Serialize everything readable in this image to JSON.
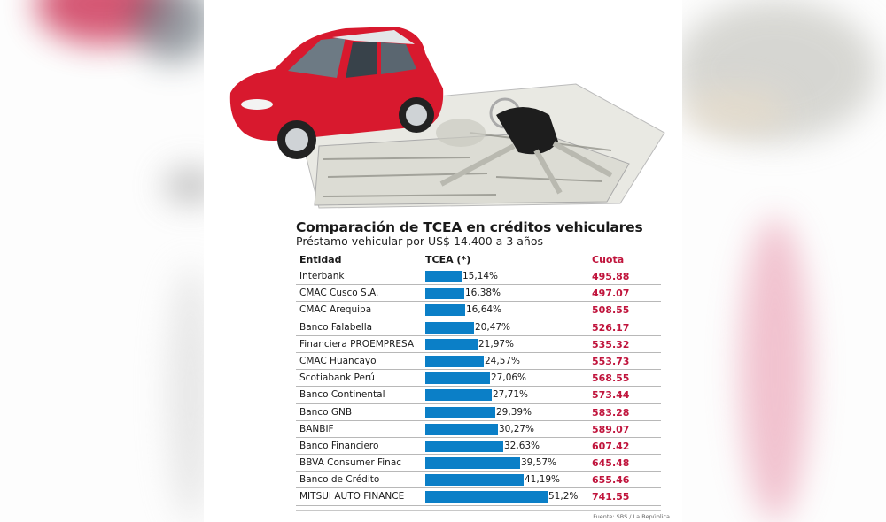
{
  "infographic": {
    "title": "Comparación de TCEA en créditos vehiculares",
    "subtitle": "Préstamo vehicular por US$ 14.400 a 3 años",
    "source": "Fuente: SBS / La República",
    "hero_image": "red-toy-car-on-dollar-bills-with-keys",
    "colors": {
      "bar": "#0b7fc7",
      "cuota": "#c0143c",
      "text": "#1a1a1a"
    },
    "table": {
      "headers": {
        "entidad": "Entidad",
        "tcea": "TCEA (*)",
        "cuota": "Cuota"
      },
      "rows": [
        {
          "entidad": "Interbank",
          "tcea": "15,14%",
          "cuota": "495.88"
        },
        {
          "entidad": "CMAC Cusco S.A.",
          "tcea": "16,38%",
          "cuota": "497.07"
        },
        {
          "entidad": "CMAC Arequipa",
          "tcea": "16,64%",
          "cuota": "508.55"
        },
        {
          "entidad": "Banco Falabella",
          "tcea": "20,47%",
          "cuota": "526.17"
        },
        {
          "entidad": "Financiera PROEMPRESA",
          "tcea": "21,97%",
          "cuota": "535.32"
        },
        {
          "entidad": "CMAC Huancayo",
          "tcea": "24,57%",
          "cuota": "553.73"
        },
        {
          "entidad": "Scotiabank Perú",
          "tcea": "27,06%",
          "cuota": "568.55"
        },
        {
          "entidad": "Banco Continental",
          "tcea": "27,71%",
          "cuota": "573.44"
        },
        {
          "entidad": "Banco GNB",
          "tcea": "29,39%",
          "cuota": "583.28"
        },
        {
          "entidad": "BANBIF",
          "tcea": "30,27%",
          "cuota": "589.07"
        },
        {
          "entidad": "Banco Financiero",
          "tcea": "32,63%",
          "cuota": "607.42"
        },
        {
          "entidad": "BBVA Consumer Finac",
          "tcea": "39,57%",
          "cuota": "645.48"
        },
        {
          "entidad": "Banco de Crédito",
          "tcea": "41,19%",
          "cuota": "655.46"
        },
        {
          "entidad": "MITSUI AUTO FINANCE",
          "tcea": "51,2%",
          "cuota": "741.55"
        }
      ]
    }
  },
  "chart_data": {
    "type": "bar",
    "orientation": "horizontal",
    "title": "Comparación de TCEA en créditos vehiculares",
    "subtitle": "Préstamo vehicular por US$ 14.400 a 3 años",
    "xlabel": "TCEA (*)",
    "ylabel": "Entidad",
    "categories": [
      "Interbank",
      "CMAC Cusco S.A.",
      "CMAC Arequipa",
      "Banco Falabella",
      "Financiera PROEMPRESA",
      "CMAC Huancayo",
      "Scotiabank Perú",
      "Banco Continental",
      "Banco GNB",
      "BANBIF",
      "Banco Financiero",
      "BBVA Consumer Finac",
      "Banco de Crédito",
      "MITSUI AUTO FINANCE"
    ],
    "series": [
      {
        "name": "TCEA (%)",
        "values": [
          15.14,
          16.38,
          16.64,
          20.47,
          21.97,
          24.57,
          27.06,
          27.71,
          29.39,
          30.27,
          32.63,
          39.57,
          41.19,
          51.2
        ]
      },
      {
        "name": "Cuota (US$)",
        "values": [
          495.88,
          497.07,
          508.55,
          526.17,
          535.32,
          553.73,
          568.55,
          573.44,
          583.28,
          589.07,
          607.42,
          645.48,
          655.46,
          741.55
        ]
      }
    ],
    "grid": false,
    "legend": null,
    "source": "Fuente: SBS / La República"
  }
}
